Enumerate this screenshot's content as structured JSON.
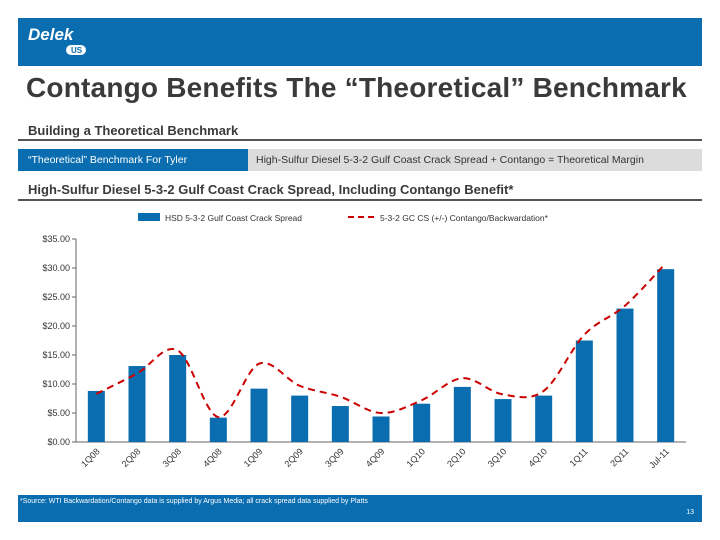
{
  "brand": {
    "name": "Delek",
    "sub": "US"
  },
  "title": "Contango Benefits The “Theoretical” Benchmark",
  "section1": "Building a Theoretical Benchmark",
  "benchmark": {
    "label": "“Theoretical” Benchmark For Tyler",
    "formula": "High-Sulfur Diesel 5-3-2 Gulf Coast Crack Spread + Contango = Theoretical Margin"
  },
  "section2": "High-Sulfur Diesel 5-3-2 Gulf Coast Crack Spread, Including Contango Benefit*",
  "footnote": "*Source: WTI Backwardation/Contango data is supplied by Argus Media; all crack spread data supplied by Platts",
  "page_number": "13",
  "colors": {
    "brand_blue": "#0a6db0",
    "bar": "#0a6db0",
    "line": "#cc0000"
  },
  "chart_data": {
    "type": "bar",
    "categories": [
      "1Q08",
      "2Q08",
      "3Q08",
      "4Q08",
      "1Q09",
      "2Q09",
      "3Q09",
      "4Q09",
      "1Q10",
      "2Q10",
      "3Q10",
      "4Q10",
      "1Q11",
      "2Q11",
      "Jul-11"
    ],
    "series": [
      {
        "name": "HSD 5-3-2 Gulf Coast Crack Spread",
        "type": "bar",
        "values": [
          8.8,
          13.1,
          15.0,
          4.2,
          9.2,
          8.0,
          6.2,
          4.4,
          6.6,
          9.5,
          7.4,
          8.0,
          17.5,
          23.0,
          29.8
        ]
      },
      {
        "name": "5-3-2 GC CS (+/-) Contango/Backwardation*",
        "type": "line",
        "style": "dashed",
        "values": [
          8.3,
          11.8,
          15.8,
          4.3,
          13.5,
          9.7,
          7.8,
          5.0,
          7.2,
          11.0,
          8.2,
          8.8,
          18.5,
          23.5,
          30.8
        ]
      }
    ],
    "ylim": [
      0,
      35
    ],
    "yticks": [
      0,
      5,
      10,
      15,
      20,
      25,
      30,
      35
    ],
    "ytick_labels": [
      "$0.00",
      "$5.00",
      "$10.00",
      "$15.00",
      "$20.00",
      "$25.00",
      "$30.00",
      "$35.00"
    ],
    "grid": false,
    "legend": "top"
  }
}
